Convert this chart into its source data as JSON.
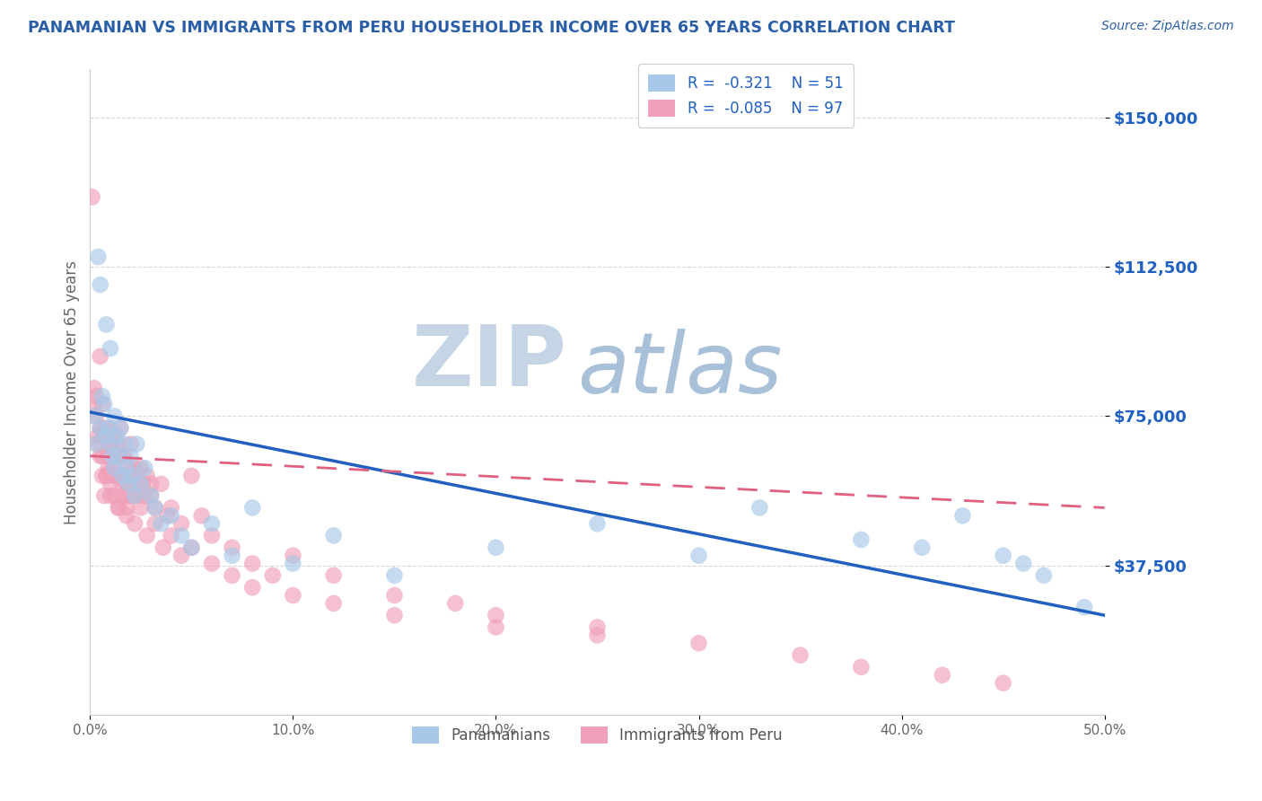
{
  "title": "PANAMANIAN VS IMMIGRANTS FROM PERU HOUSEHOLDER INCOME OVER 65 YEARS CORRELATION CHART",
  "source_text": "Source: ZipAtlas.com",
  "ylabel": "Householder Income Over 65 years",
  "xlim": [
    0.0,
    0.5
  ],
  "ylim": [
    0,
    162000
  ],
  "xtick_labels": [
    "0.0%",
    "10.0%",
    "20.0%",
    "30.0%",
    "40.0%",
    "50.0%"
  ],
  "xtick_values": [
    0.0,
    0.1,
    0.2,
    0.3,
    0.4,
    0.5
  ],
  "ytick_labels": [
    "$37,500",
    "$75,000",
    "$112,500",
    "$150,000"
  ],
  "ytick_values": [
    37500,
    75000,
    112500,
    150000
  ],
  "blue_color": "#a8c8e8",
  "pink_color": "#f0a0b8",
  "blue_line_color": "#2060c0",
  "pink_line_color": "#e06080",
  "watermark_zip_color": "#c8d8e8",
  "watermark_atlas_color": "#a0b8d0",
  "legend_label_blue": "Panamanians",
  "legend_label_pink": "Immigrants from Peru",
  "blue_x": [
    0.002,
    0.003,
    0.004,
    0.005,
    0.005,
    0.006,
    0.007,
    0.008,
    0.008,
    0.009,
    0.01,
    0.01,
    0.011,
    0.012,
    0.012,
    0.013,
    0.014,
    0.015,
    0.016,
    0.017,
    0.018,
    0.019,
    0.02,
    0.021,
    0.022,
    0.023,
    0.025,
    0.027,
    0.03,
    0.032,
    0.035,
    0.04,
    0.045,
    0.05,
    0.06,
    0.07,
    0.08,
    0.1,
    0.12,
    0.15,
    0.2,
    0.25,
    0.3,
    0.33,
    0.38,
    0.41,
    0.43,
    0.45,
    0.46,
    0.47,
    0.49
  ],
  "blue_y": [
    75000,
    68000,
    115000,
    72000,
    108000,
    80000,
    78000,
    70000,
    98000,
    72000,
    68000,
    92000,
    65000,
    75000,
    62000,
    70000,
    65000,
    72000,
    60000,
    68000,
    62000,
    58000,
    65000,
    60000,
    55000,
    68000,
    58000,
    62000,
    55000,
    52000,
    48000,
    50000,
    45000,
    42000,
    48000,
    40000,
    52000,
    38000,
    45000,
    35000,
    42000,
    48000,
    40000,
    52000,
    44000,
    42000,
    50000,
    40000,
    38000,
    35000,
    27000
  ],
  "pink_x": [
    0.001,
    0.002,
    0.003,
    0.004,
    0.005,
    0.005,
    0.006,
    0.006,
    0.007,
    0.007,
    0.008,
    0.008,
    0.009,
    0.009,
    0.01,
    0.01,
    0.011,
    0.011,
    0.012,
    0.012,
    0.013,
    0.013,
    0.014,
    0.014,
    0.015,
    0.015,
    0.016,
    0.016,
    0.017,
    0.017,
    0.018,
    0.018,
    0.019,
    0.019,
    0.02,
    0.021,
    0.022,
    0.023,
    0.024,
    0.025,
    0.026,
    0.027,
    0.028,
    0.03,
    0.032,
    0.035,
    0.038,
    0.04,
    0.045,
    0.05,
    0.055,
    0.06,
    0.07,
    0.08,
    0.09,
    0.1,
    0.12,
    0.15,
    0.18,
    0.2,
    0.25,
    0.3,
    0.35,
    0.38,
    0.42,
    0.45,
    0.002,
    0.003,
    0.004,
    0.005,
    0.006,
    0.007,
    0.008,
    0.009,
    0.01,
    0.012,
    0.014,
    0.016,
    0.018,
    0.02,
    0.022,
    0.025,
    0.028,
    0.032,
    0.036,
    0.04,
    0.045,
    0.05,
    0.06,
    0.07,
    0.08,
    0.1,
    0.12,
    0.15,
    0.2,
    0.25,
    0.03
  ],
  "pink_y": [
    130000,
    78000,
    80000,
    70000,
    90000,
    65000,
    78000,
    60000,
    72000,
    55000,
    70000,
    60000,
    68000,
    62000,
    72000,
    58000,
    68000,
    62000,
    70000,
    55000,
    65000,
    60000,
    68000,
    52000,
    72000,
    60000,
    65000,
    55000,
    60000,
    65000,
    58000,
    52000,
    62000,
    55000,
    68000,
    60000,
    62000,
    58000,
    55000,
    62000,
    58000,
    55000,
    60000,
    55000,
    52000,
    58000,
    50000,
    52000,
    48000,
    60000,
    50000,
    45000,
    42000,
    38000,
    35000,
    40000,
    35000,
    30000,
    28000,
    25000,
    22000,
    18000,
    15000,
    12000,
    10000,
    8000,
    82000,
    75000,
    68000,
    72000,
    65000,
    70000,
    60000,
    65000,
    55000,
    60000,
    52000,
    58000,
    50000,
    55000,
    48000,
    52000,
    45000,
    48000,
    42000,
    45000,
    40000,
    42000,
    38000,
    35000,
    32000,
    30000,
    28000,
    25000,
    22000,
    20000,
    58000
  ]
}
